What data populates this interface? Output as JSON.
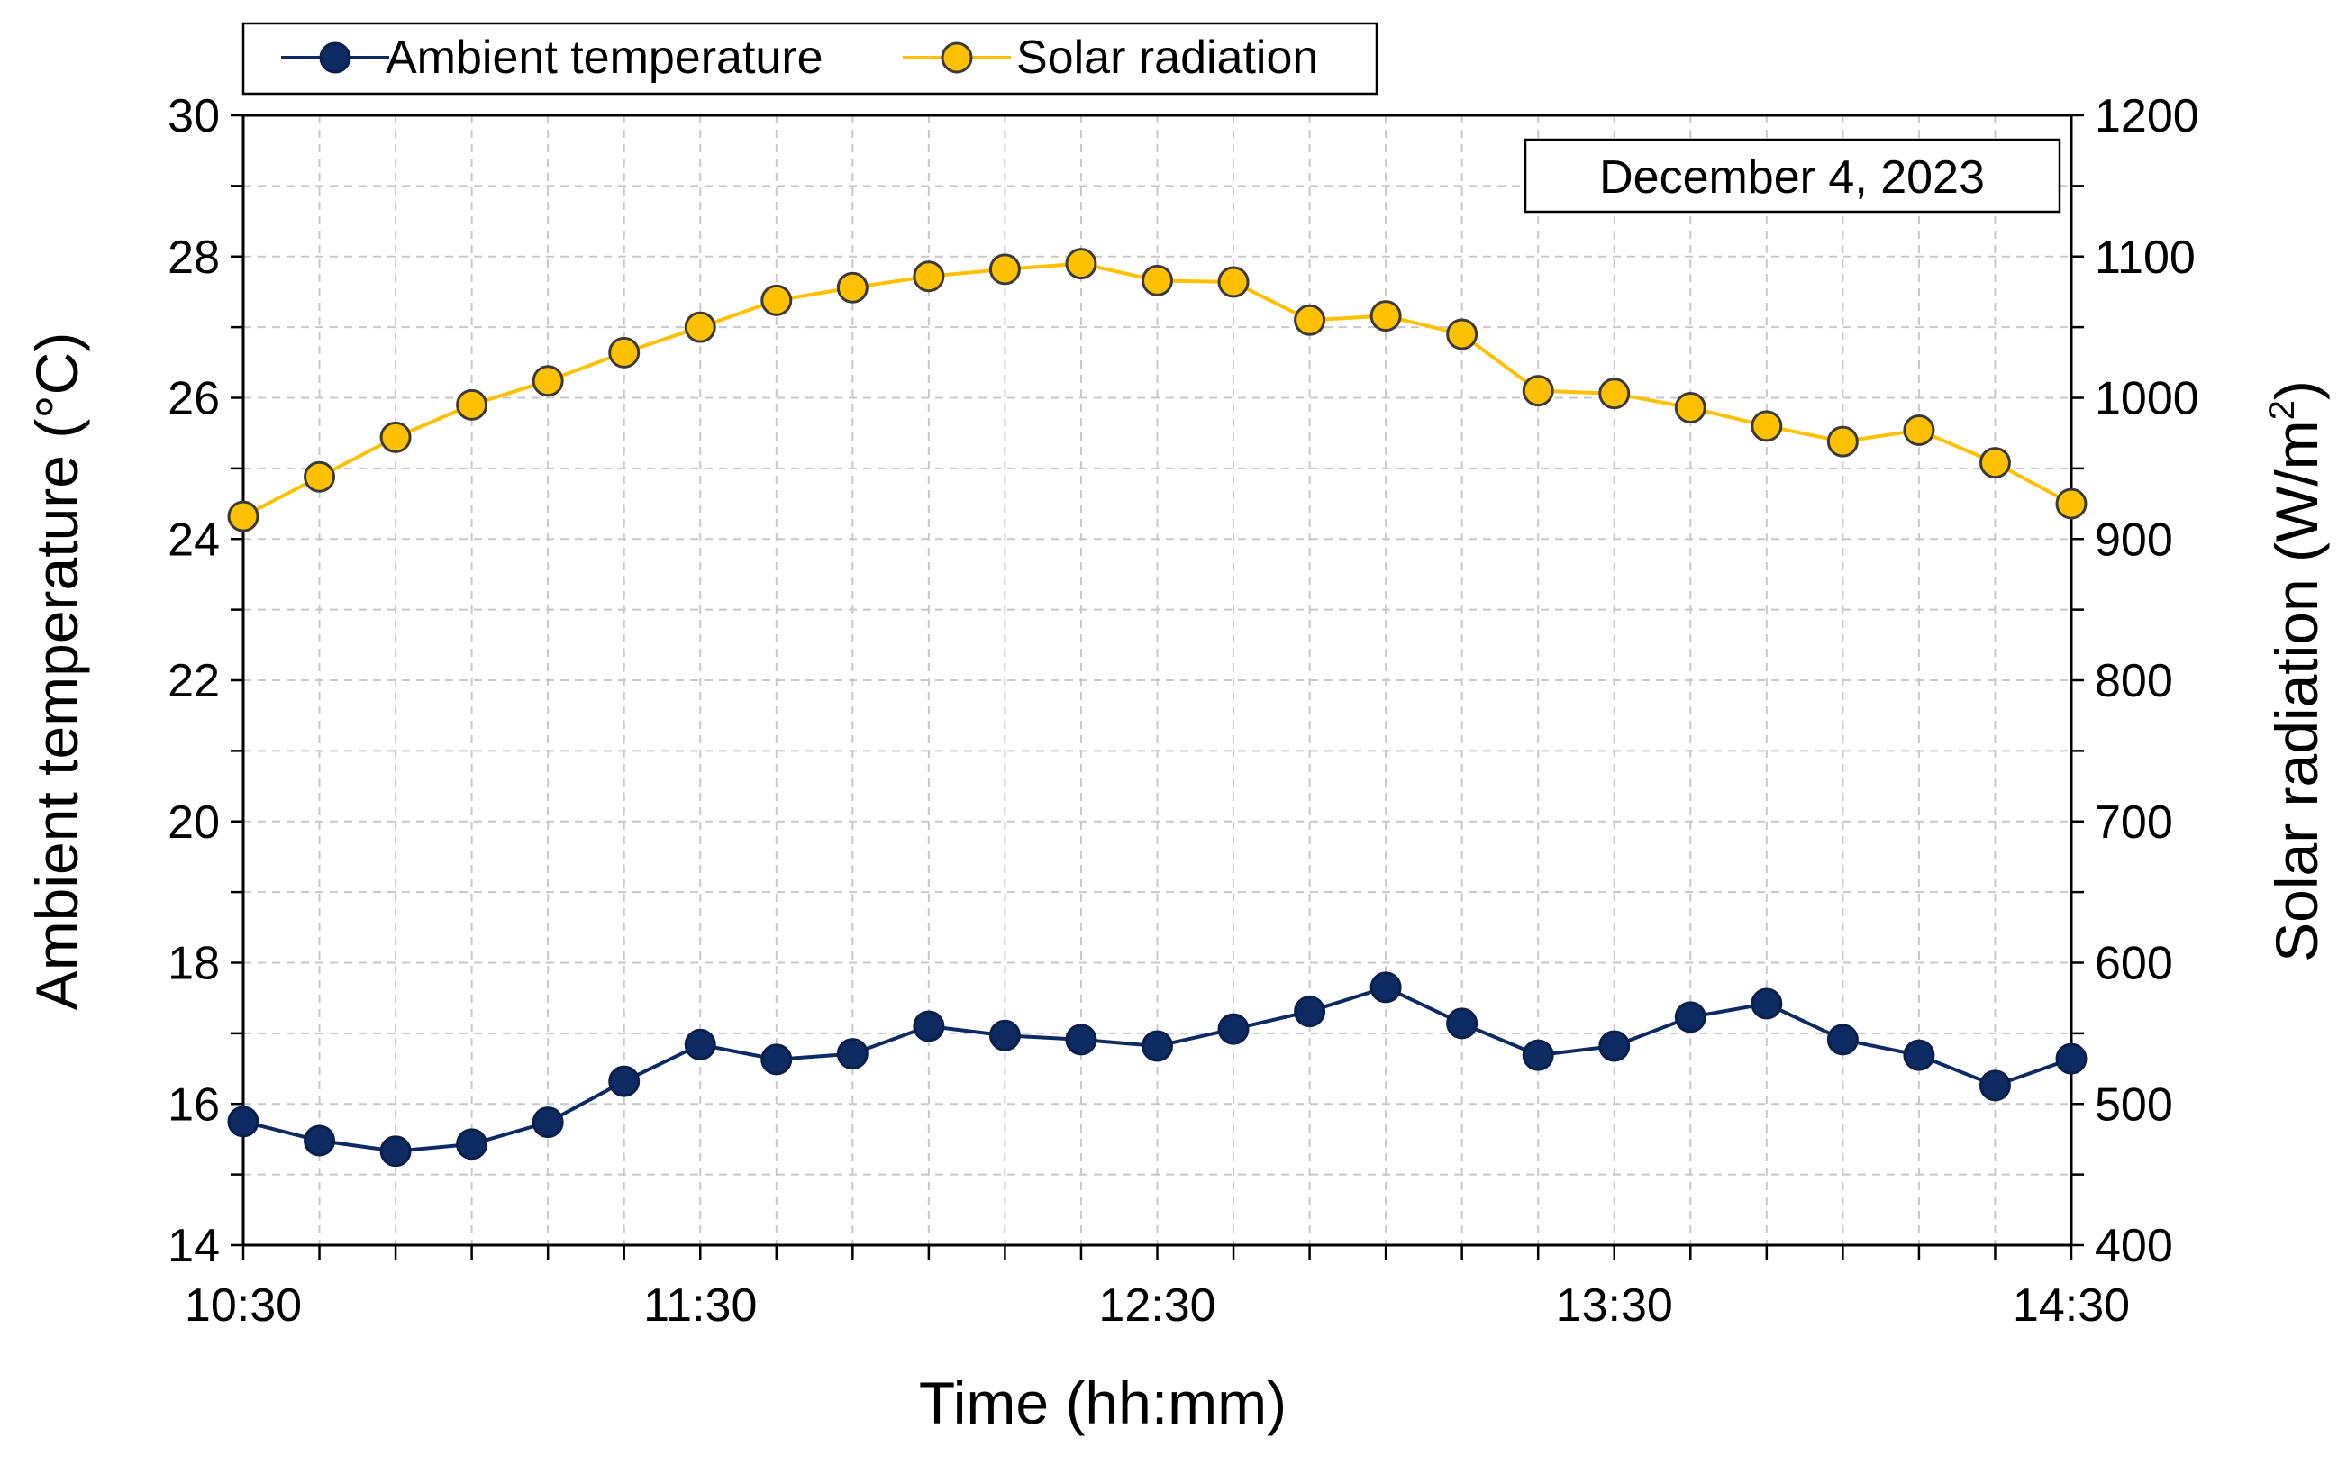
{
  "chart_data": {
    "type": "line",
    "title": "",
    "annotation": "December 4, 2023",
    "xlabel": "Time (hh:mm)",
    "ylabel_left": "Ambient temperature (°C)",
    "ylabel_right_main": "Solar radiation (W/m",
    "ylabel_right_sup": "2",
    "ylabel_right_close": ")",
    "xlim_minutes": [
      630,
      870
    ],
    "x_tick_labels": [
      "10:30",
      "11:30",
      "12:30",
      "13:30",
      "14:30"
    ],
    "x_tick_minutes": [
      630,
      690,
      750,
      810,
      870
    ],
    "x_minor_step_minutes": 10,
    "ylim_left": [
      14,
      30
    ],
    "y_ticks_left": [
      14,
      16,
      18,
      20,
      22,
      24,
      26,
      28,
      30
    ],
    "ylim_right": [
      400,
      1200
    ],
    "y_ticks_right": [
      400,
      500,
      600,
      700,
      800,
      900,
      1000,
      1100,
      1200
    ],
    "grid": true,
    "legend_position": "top-left-outside",
    "x_minutes": [
      630,
      640,
      650,
      660,
      670,
      680,
      690,
      700,
      710,
      720,
      730,
      740,
      750,
      760,
      770,
      780,
      790,
      800,
      810,
      820,
      830,
      840,
      850,
      860,
      870
    ],
    "series": [
      {
        "name": "Ambient temperature",
        "axis": "left",
        "color": "#0d2a63",
        "edge_color": "#0a1f4a",
        "values": [
          15.75,
          15.48,
          15.33,
          15.43,
          15.74,
          16.32,
          16.84,
          16.63,
          16.71,
          17.1,
          16.97,
          16.91,
          16.82,
          17.06,
          17.31,
          17.65,
          17.14,
          16.69,
          16.82,
          17.23,
          17.42,
          16.91,
          16.69,
          16.26,
          16.64
        ]
      },
      {
        "name": "Solar radiation",
        "axis": "right",
        "color": "#ffc000",
        "edge_color": "#3a3a3a",
        "values": [
          916,
          944,
          972,
          995,
          1012,
          1032,
          1050,
          1069,
          1078,
          1086,
          1091,
          1095,
          1083,
          1082,
          1055,
          1058,
          1045,
          1005,
          1003,
          993,
          980,
          969,
          977,
          954,
          925
        ]
      }
    ]
  }
}
